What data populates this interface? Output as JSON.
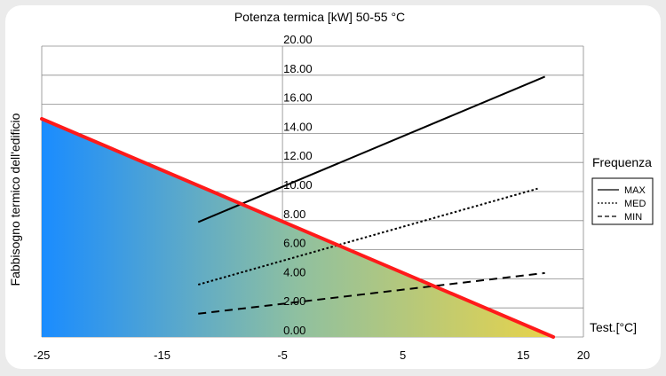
{
  "chart_data": {
    "type": "line",
    "title": "Potenza termica [kW] 50-55 °C",
    "ylabel": "Fabbisogno termico dell'edificio",
    "xlabel": "Test.[°C]",
    "xlim": [
      -25,
      20
    ],
    "ylim": [
      0,
      20
    ],
    "x_ticks": [
      "-25",
      "-15",
      "-5",
      "5",
      "15",
      "20"
    ],
    "x_tick_values": [
      -25,
      -15,
      -5,
      5,
      15,
      20
    ],
    "y_ticks": [
      "0.00",
      "2.00",
      "4.00",
      "6.00",
      "8.00",
      "10.00",
      "12.00",
      "14.00",
      "16.00",
      "18.00",
      "20.00"
    ],
    "y_tick_values": [
      0,
      2,
      4,
      6,
      8,
      10,
      12,
      14,
      16,
      18,
      20
    ],
    "grid": true,
    "legend": {
      "title": "Frequenza",
      "position": "right",
      "entries": [
        {
          "label": "MAX",
          "dash": "solid"
        },
        {
          "label": "MED",
          "dash": "dotted"
        },
        {
          "label": "MIN",
          "dash": "dashed"
        }
      ]
    },
    "demand_line": {
      "color": "#ff1a1a",
      "x": [
        -25,
        17.5
      ],
      "y": [
        15.0,
        0.0
      ]
    },
    "series": [
      {
        "name": "MAX",
        "dash": "solid",
        "color": "#000000",
        "x": [
          -12,
          16.8
        ],
        "y": [
          7.9,
          17.9
        ]
      },
      {
        "name": "MED",
        "dash": "dotted",
        "color": "#000000",
        "x": [
          -12,
          16.2
        ],
        "y": [
          3.6,
          10.2
        ]
      },
      {
        "name": "MIN",
        "dash": "dashed",
        "color": "#000000",
        "x": [
          -12,
          16.8
        ],
        "y": [
          1.6,
          4.4
        ]
      }
    ],
    "fill_gradient": [
      "#1a8cff",
      "#8fc0a0",
      "#e8d34a"
    ]
  }
}
